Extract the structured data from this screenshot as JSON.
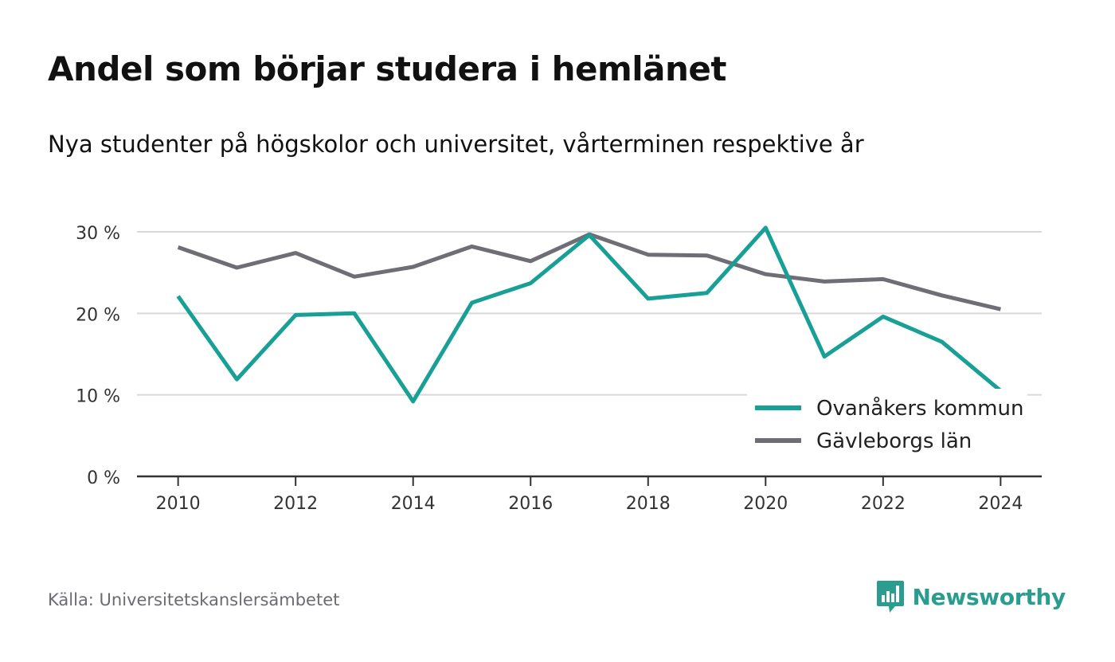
{
  "header": {
    "title": "Andel som börjar studera i hemlänet",
    "subtitle": "Nya studenter på högskolor och universitet, vårterminen respektive år"
  },
  "footer": {
    "source": "Källa: Universitetskanslersämbetet",
    "brand": "Newsworthy",
    "brand_icon": "newsworthy-logo-icon"
  },
  "colors": {
    "series_1": "#18a096",
    "series_2": "#6f6e76",
    "grid": "#d9d9dc",
    "axis": "#333333",
    "brand": "#2a9d8f"
  },
  "chart_data": {
    "type": "line",
    "x": [
      2010,
      2011,
      2012,
      2013,
      2014,
      2015,
      2016,
      2017,
      2018,
      2019,
      2020,
      2021,
      2022,
      2023,
      2024
    ],
    "xticks": [
      2010,
      2012,
      2014,
      2016,
      2018,
      2020,
      2022,
      2024
    ],
    "xtick_labels": [
      "2010",
      "2012",
      "2014",
      "2016",
      "2018",
      "2020",
      "2022",
      "2024"
    ],
    "yticks": [
      0,
      10,
      20,
      30
    ],
    "ytick_labels": [
      "0 %",
      "10 %",
      "20 %",
      "30 %"
    ],
    "ylim": [
      0,
      30
    ],
    "xlim": [
      2009.3,
      2024.7
    ],
    "grid": true,
    "legend": "bottom-right",
    "series": [
      {
        "name": "Ovanåkers kommun",
        "color": "#18a096",
        "values": [
          22.1,
          11.9,
          19.8,
          20.0,
          9.2,
          21.3,
          23.7,
          29.6,
          21.8,
          22.5,
          30.5,
          14.7,
          19.6,
          16.5,
          10.5
        ]
      },
      {
        "name": "Gävleborgs län",
        "color": "#6f6e76",
        "values": [
          28.1,
          25.6,
          27.4,
          24.5,
          25.7,
          28.2,
          26.4,
          29.7,
          27.2,
          27.1,
          24.8,
          23.9,
          24.2,
          22.2,
          20.5
        ]
      }
    ]
  }
}
